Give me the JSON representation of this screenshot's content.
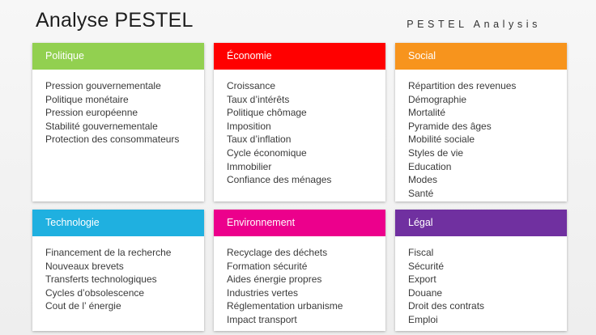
{
  "title": "Analyse PESTEL",
  "subtitle": "PESTEL Analysis",
  "cards": [
    {
      "header": "Politique",
      "color": "#92d050",
      "items": [
        "Pression gouvernementale",
        "Politique monétaire",
        "Pression européenne",
        "Stabilité gouvernementale",
        "Protection des consommateurs"
      ]
    },
    {
      "header": "Économie",
      "color": "#ff0000",
      "items": [
        "Croissance",
        "Taux d’intérêts",
        "Politique chômage",
        "Imposition",
        "Taux d’inflation",
        "Cycle économique",
        "Immobilier",
        "Confiance des ménages"
      ]
    },
    {
      "header": "Social",
      "color": "#f7941d",
      "items": [
        "Répartition des revenues",
        "Démographie",
        "Mortalité",
        "Pyramide des âges",
        "Mobilité sociale",
        "Styles de vie",
        "Education",
        "Modes",
        "Santé"
      ]
    },
    {
      "header": "Technologie",
      "color": "#1fb0e0",
      "items": [
        "Financement de la recherche",
        "Nouveaux brevets",
        "Transferts technologiques",
        "Cycles d’obsolescence",
        "Cout de l’ énergie"
      ]
    },
    {
      "header": "Environnement",
      "color": "#ec008c",
      "items": [
        "Recyclage des déchets",
        "Formation sécurité",
        "Aides énergie propres",
        "Industries vertes",
        "Réglementation urbanisme",
        "Impact transport"
      ]
    },
    {
      "header": "Légal",
      "color": "#7030a0",
      "items": [
        "Fiscal",
        "Sécurité",
        "Export",
        "Douane",
        "Droit des contrats",
        "Emploi"
      ]
    }
  ]
}
